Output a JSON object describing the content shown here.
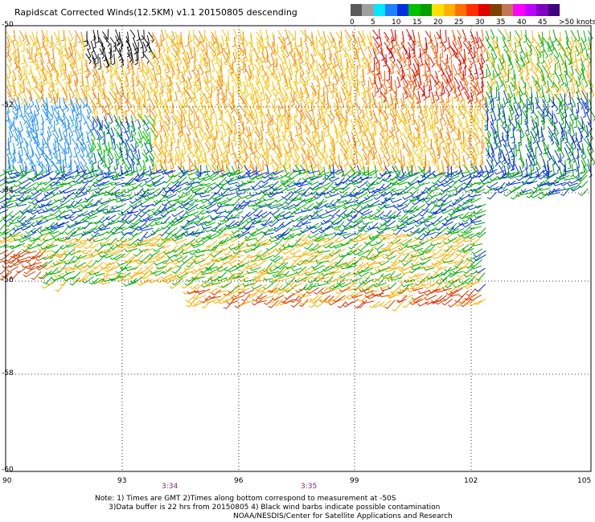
{
  "title": "Rapidscat Corrected Winds(12.5KM) v1.1 20150805 descending",
  "legend": {
    "colors": [
      "#5a5a5a",
      "#a0a0a0",
      "#00e8ff",
      "#2080ff",
      "#0030e0",
      "#00c000",
      "#00a000",
      "#ffe000",
      "#ffb000",
      "#ff7000",
      "#ff3000",
      "#e00000",
      "#804000",
      "#c07850",
      "#ff00ff",
      "#c000ff",
      "#8000c0",
      "#400080"
    ],
    "labels": [
      "0",
      "5",
      "10",
      "15",
      "20",
      "25",
      "30",
      "35",
      "40",
      "45",
      ">50 knots"
    ]
  },
  "axes": {
    "y_labels": [
      "-50",
      "-52",
      "-54",
      "-56",
      "-58",
      "-60"
    ],
    "x_labels": [
      "90",
      "93",
      "96",
      "99",
      "102",
      "105"
    ],
    "time_labels": [
      "3:34",
      "3:35"
    ]
  },
  "notes": {
    "line1": "Note: 1) Times are GMT 2)Times along bottom correspond to measurement at -50S",
    "line2": "      3)Data buffer is 22 hrs from 20150805 4) Black wind barbs indicate possible contamination",
    "credit": "NOAA/NESDIS/Center for Satellite Applications and Research"
  }
}
